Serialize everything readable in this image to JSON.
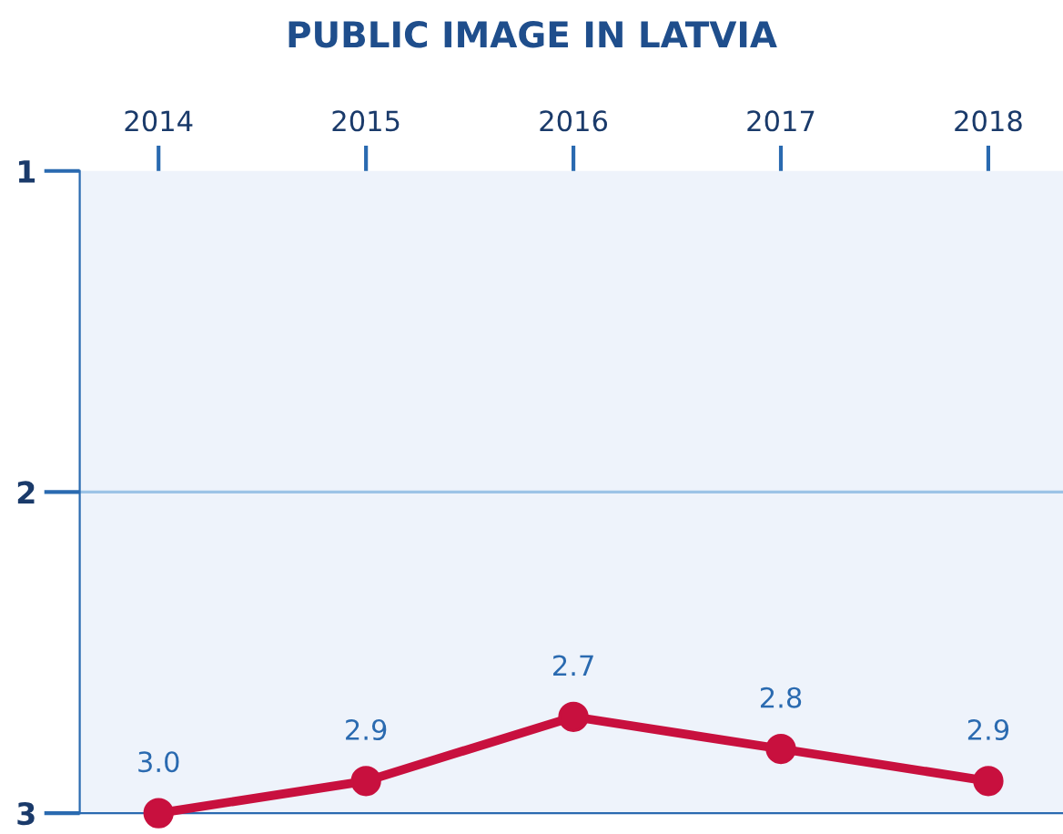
{
  "chart_data": {
    "type": "line",
    "title": "PUBLIC IMAGE IN LATVIA",
    "categories": [
      "2014",
      "2015",
      "2016",
      "2017",
      "2018"
    ],
    "series": [
      {
        "color": "#c8103e",
        "values": [
          3.0,
          2.9,
          2.7,
          2.8,
          2.9
        ],
        "value_labels": [
          "3.0",
          "2.9",
          "2.7",
          "2.8",
          "2.9"
        ]
      }
    ],
    "ylim": [
      3,
      1
    ],
    "yticks": [
      1,
      2,
      3
    ],
    "ref_lines": [
      {
        "axis": "y",
        "value": 2,
        "color": "#9cc3e6"
      }
    ],
    "marker": "circle",
    "line_style": "solid"
  }
}
